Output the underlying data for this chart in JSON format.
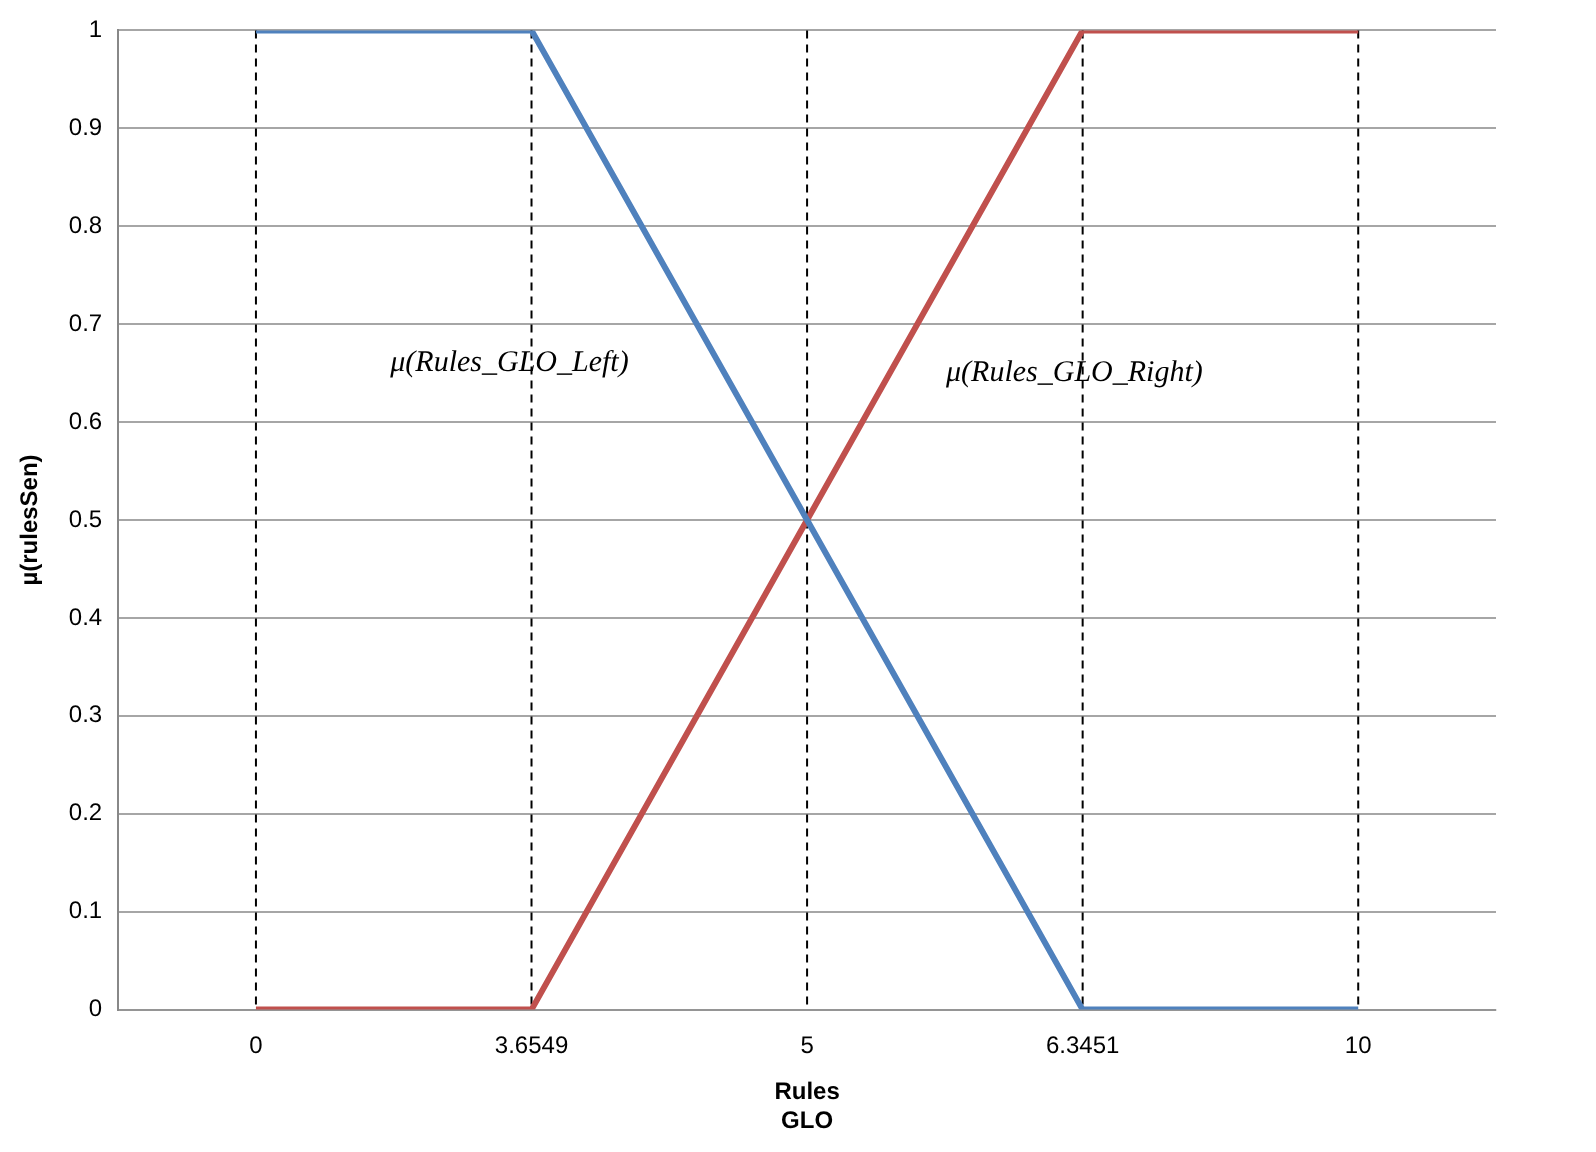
{
  "chart_data": {
    "type": "line",
    "xlabel": "Rules\nGLO",
    "ylabel": "µ(rulesSen)",
    "categories": [
      "0",
      "3.6549",
      "5",
      "6.3451",
      "10"
    ],
    "series": [
      {
        "color": "#4f81bd",
        "values": [
          1,
          1,
          0.5,
          0,
          0
        ]
      },
      {
        "color": "#c0504d",
        "values": [
          0,
          0,
          0.5,
          1,
          1
        ]
      }
    ],
    "annotations": [
      "μ(Rules_GLO_Left)",
      "μ(Rules_GLO_Right)"
    ],
    "ylim": [
      0,
      1
    ],
    "yticks": [
      0,
      0.1,
      0.2,
      0.3,
      0.4,
      0.5,
      0.6,
      0.7,
      0.8,
      0.9,
      1
    ],
    "ref_lines": [
      {
        "axis": "x",
        "value": "0",
        "color": "#000000",
        "line_style": "dashed"
      },
      {
        "axis": "x",
        "value": "3.6549",
        "color": "#000000",
        "line_style": "dashed"
      },
      {
        "axis": "x",
        "value": "5",
        "color": "#000000",
        "line_style": "dashed"
      },
      {
        "axis": "x",
        "value": "6.3451",
        "color": "#000000",
        "line_style": "dashed"
      },
      {
        "axis": "x",
        "value": "10",
        "color": "#000000",
        "line_style": "dashed"
      }
    ],
    "grid": "y",
    "legend": false,
    "marker": "none",
    "line_style": "solid"
  }
}
